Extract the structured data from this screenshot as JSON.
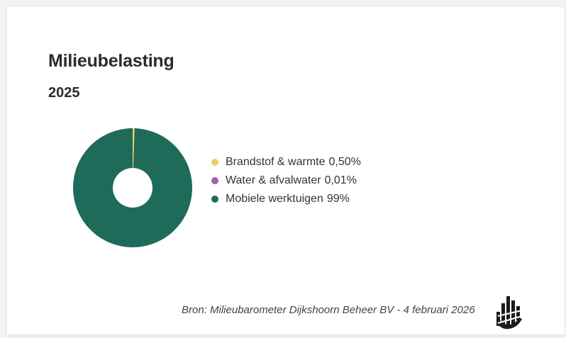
{
  "card": {
    "title": "Milieubelasting",
    "subtitle": "2025",
    "source": "Bron: Milieubarometer Dijkshoorn Beheer BV - 4 februari 2026",
    "logo_icon": "bar-hand-logo-icon"
  },
  "chart_data": {
    "type": "pie",
    "title": "Milieubelasting",
    "subtitle": "2025",
    "donut": true,
    "legend_position": "right",
    "series": [
      {
        "name": "Brandstof & warmte",
        "value": 0.5,
        "label": "0,50%",
        "color": "#f2cf5b"
      },
      {
        "name": "Water & afvalwater",
        "value": 0.01,
        "label": "0,01%",
        "color": "#a35bb5"
      },
      {
        "name": "Mobiele werktuigen",
        "value": 99,
        "label": "99%",
        "color": "#1e6b59"
      }
    ]
  }
}
